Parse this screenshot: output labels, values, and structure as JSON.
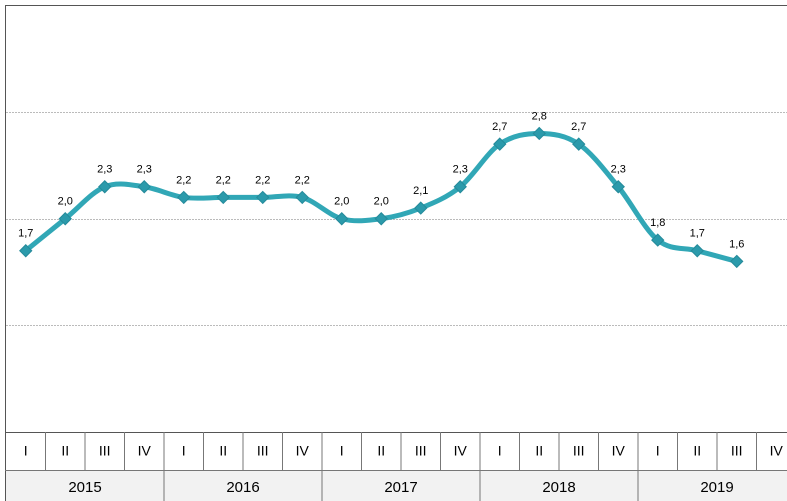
{
  "chart_data": {
    "type": "line",
    "categories": [
      "I",
      "II",
      "III",
      "IV",
      "I",
      "II",
      "III",
      "IV",
      "I",
      "II",
      "III",
      "IV",
      "I",
      "II",
      "III",
      "IV",
      "I",
      "II",
      "III",
      "IV"
    ],
    "years": [
      "2015",
      "2016",
      "2017",
      "2018",
      "2019"
    ],
    "series": [
      {
        "color": "#31a7b6",
        "values": [
          1.7,
          2.0,
          2.3,
          2.3,
          2.2,
          2.2,
          2.2,
          2.2,
          2.0,
          2.0,
          2.1,
          2.3,
          2.7,
          2.8,
          2.7,
          2.3,
          1.8,
          1.7,
          1.6,
          null
        ],
        "value_labels": [
          "1,7",
          "2,0",
          "2,3",
          "2,3",
          "2,2",
          "2,2",
          "2,2",
          "2,2",
          "2,0",
          "2,0",
          "2,1",
          "2,3",
          "2,7",
          "2,8",
          "2,7",
          "2,3",
          "1,8",
          "1,7",
          "1,6",
          null
        ]
      }
    ],
    "ylim": [
      0,
      4
    ],
    "yticks": [
      1,
      2,
      3
    ],
    "grid": true
  }
}
